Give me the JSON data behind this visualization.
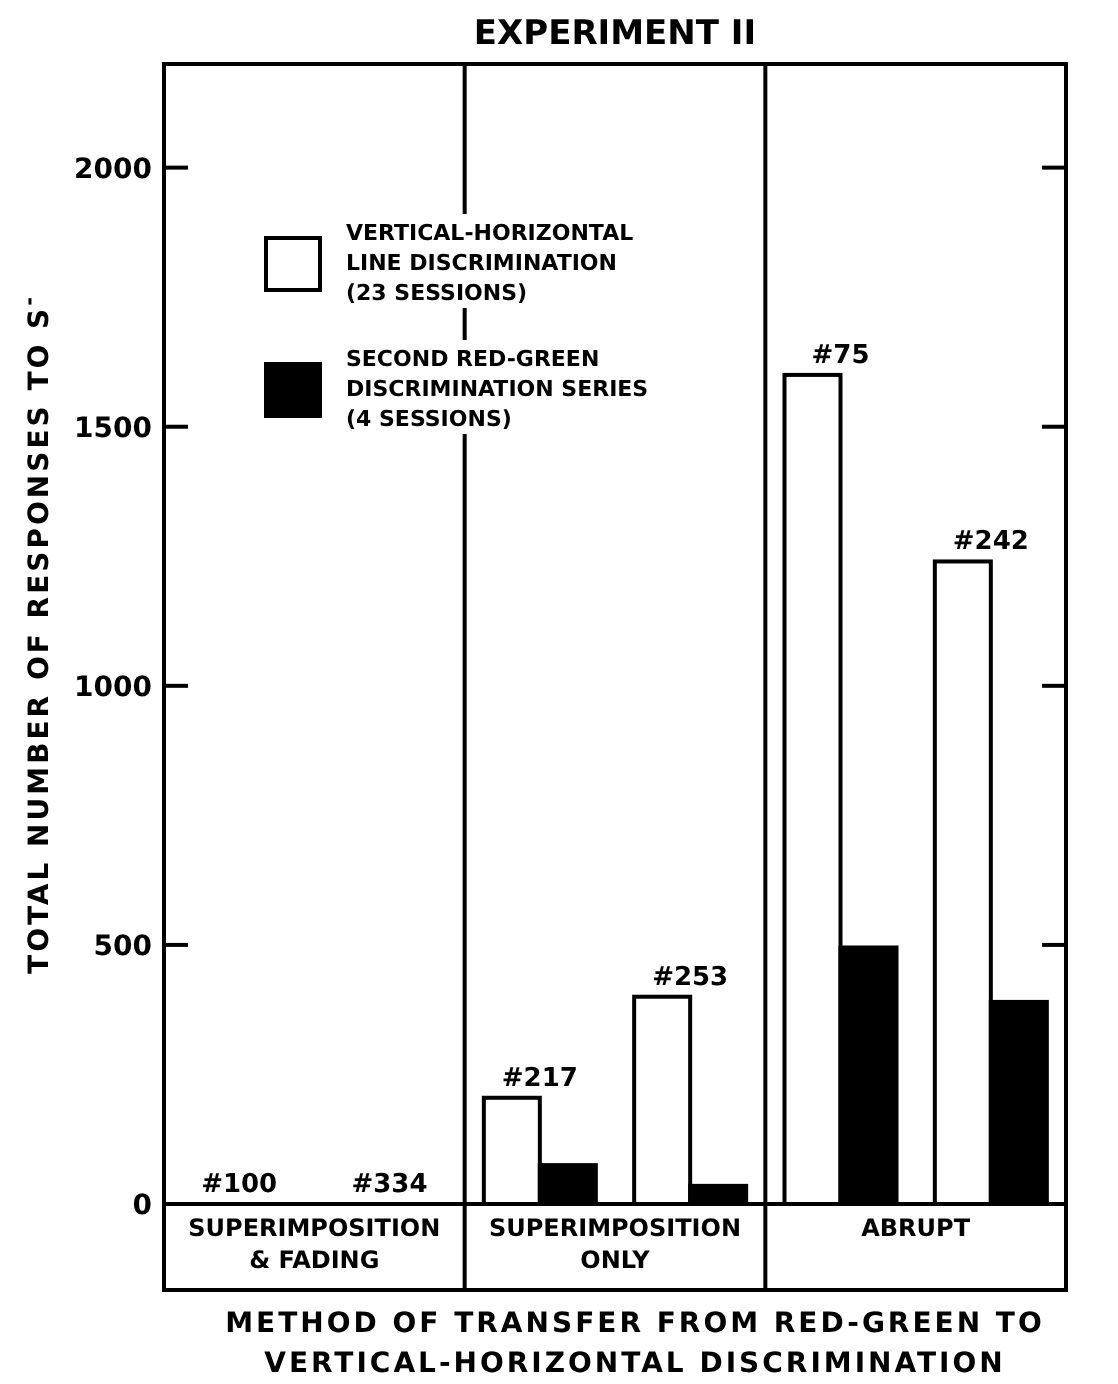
{
  "chart_data": {
    "type": "bar",
    "title": "EXPERIMENT II",
    "xlabel": "METHOD OF TRANSFER FROM RED-GREEN TO VERTICAL-HORIZONTAL DISCRIMINATION",
    "ylabel": "TOTAL NUMBER OF RESPONSES TO S$^{-}$",
    "categories": [
      "#100",
      "#334",
      "#217",
      "#253",
      "#75",
      "#242"
    ],
    "series": [
      {
        "name": "VERTICAL-HORIZONTAL LINE DISCRIMINATION (23 SESSIONS)",
        "color": "#ffffff",
        "values": [
          0,
          0,
          205,
          400,
          1600,
          1240
        ]
      },
      {
        "name": "SECOND RED-GREEN DISCRIMINATION SERIES (4 SESSIONS)",
        "color": "#000000",
        "values": [
          0,
          0,
          75,
          35,
          495,
          390
        ]
      }
    ],
    "annotations": [
      "SUPERIMPOSITION & FADING",
      "SUPERIMPOSITION ONLY",
      "ABRUPT"
    ],
    "ylim": [
      0,
      2200
    ],
    "yticks": [
      0,
      500,
      1000,
      1500,
      2000
    ],
    "legend": "top left",
    "grid": false
  }
}
